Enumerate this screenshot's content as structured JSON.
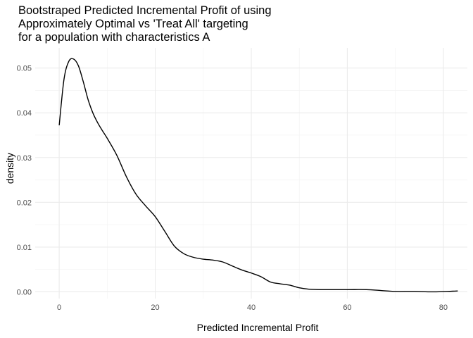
{
  "chart_data": {
    "type": "line",
    "title_lines": [
      "Bootstraped Predicted Incremental Profit of using",
      "Approximately Optimal vs 'Treat All' targeting",
      "for a population with characteristics A"
    ],
    "xlabel": "Predicted Incremental Profit",
    "ylabel": "density",
    "xlim": [
      -5,
      85
    ],
    "ylim": [
      -0.0015,
      0.0545
    ],
    "x_ticks": [
      0,
      20,
      40,
      60,
      80
    ],
    "y_ticks": [
      0.0,
      0.01,
      0.02,
      0.03,
      0.04,
      0.05
    ],
    "x_tick_labels": [
      "0",
      "20",
      "40",
      "60",
      "80"
    ],
    "y_tick_labels": [
      "0.00",
      "0.01",
      "0.02",
      "0.03",
      "0.04",
      "0.05"
    ],
    "grid": true,
    "legend": "none",
    "series": [
      {
        "x": [
          0,
          1,
          2,
          3,
          4,
          5,
          6,
          7,
          8,
          9,
          10,
          12,
          14,
          16,
          18,
          20,
          22,
          24,
          26,
          28,
          30,
          32,
          34,
          36,
          38,
          40,
          42,
          44,
          46,
          48,
          50,
          52,
          55,
          60,
          64,
          67,
          70,
          74,
          78,
          83
        ],
        "y": [
          0.0372,
          0.0475,
          0.0515,
          0.052,
          0.0505,
          0.047,
          0.043,
          0.04,
          0.0378,
          0.036,
          0.0343,
          0.0305,
          0.0257,
          0.0218,
          0.0192,
          0.0168,
          0.0135,
          0.0102,
          0.0085,
          0.0077,
          0.0073,
          0.0071,
          0.0067,
          0.0058,
          0.0049,
          0.0042,
          0.0034,
          0.0022,
          0.0018,
          0.0015,
          0.0009,
          0.0006,
          0.0005,
          0.0005,
          0.0005,
          0.0003,
          0.0001,
          0.0001,
          0.0,
          0.0002
        ],
        "color": "#000000"
      }
    ]
  }
}
